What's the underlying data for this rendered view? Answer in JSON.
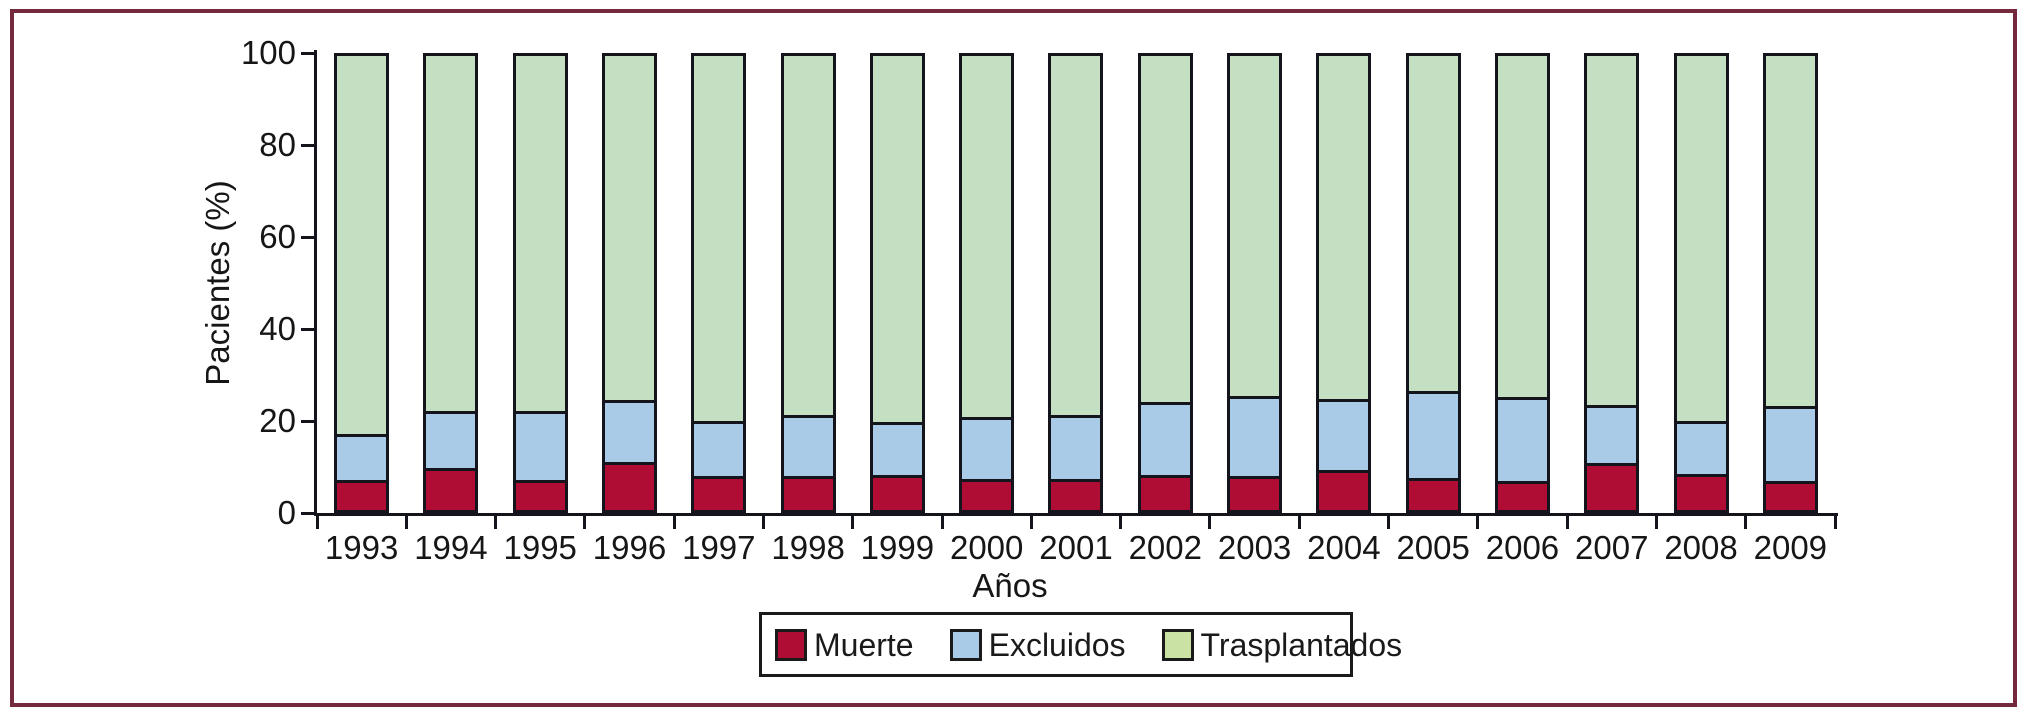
{
  "figure": {
    "frame_color": "#75293C",
    "background_color": "#FFFFFF",
    "axis_color": "#14141C"
  },
  "chart_data": {
    "type": "bar",
    "stacked": true,
    "orientation": "vertical",
    "title": "",
    "xlabel": "Años",
    "ylabel": "Pacientes (%)",
    "ylim": [
      0,
      100
    ],
    "yticks": [
      0,
      20,
      40,
      60,
      80,
      100
    ],
    "grid": false,
    "legend_position": "bottom",
    "categories": [
      "1993",
      "1994",
      "1995",
      "1996",
      "1997",
      "1998",
      "1999",
      "2000",
      "2001",
      "2002",
      "2003",
      "2004",
      "2005",
      "2006",
      "2007",
      "2008",
      "2009"
    ],
    "series": [
      {
        "name": "Muerte",
        "color": "#B00D35",
        "values": [
          6.5,
          9.3,
          6.5,
          10.6,
          7.5,
          7.5,
          7.7,
          6.8,
          6.8,
          7.8,
          7.5,
          8.9,
          7.0,
          6.3,
          10.3,
          8.0,
          6.4
        ]
      },
      {
        "name": "Excluidos",
        "color": "#A9CBE8",
        "values": [
          10.3,
          12.4,
          15.2,
          13.6,
          12.0,
          13.5,
          11.7,
          13.7,
          14.2,
          15.9,
          17.7,
          15.5,
          19.2,
          18.6,
          12.9,
          11.5,
          16.4
        ]
      },
      {
        "name": "Trasplantados",
        "color": "#C5DFC2",
        "values": [
          83.2,
          78.3,
          78.3,
          75.8,
          80.5,
          79.0,
          80.6,
          79.5,
          79.0,
          76.3,
          74.8,
          75.6,
          73.8,
          75.1,
          76.8,
          80.5,
          77.2
        ]
      }
    ]
  },
  "legend": {
    "items": [
      {
        "label": "Muerte",
        "swatch_color": "#B00D35"
      },
      {
        "label": "Excluidos",
        "swatch_color": "#A9CBE8"
      },
      {
        "label": "Trasplantados",
        "swatch_color": "#CAE2A4"
      }
    ]
  }
}
